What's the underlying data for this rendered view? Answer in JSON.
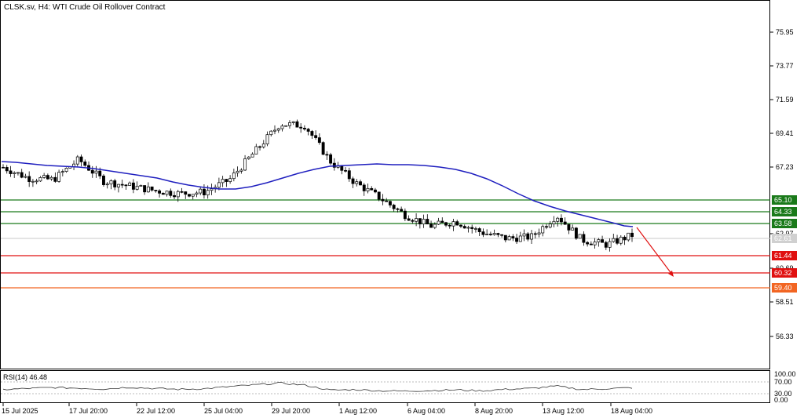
{
  "header": {
    "title": "CLSK.sv, H4:  WTI Crude Oil Rollover Contract"
  },
  "price_axis": {
    "ticks": [
      "75.95",
      "73.77",
      "71.59",
      "69.41",
      "67.23",
      "65.10",
      "64.33",
      "63.58",
      "62.97",
      "62.61",
      "61.44",
      "60.69",
      "60.32",
      "59.40",
      "58.51",
      "56.33"
    ]
  },
  "levels": {
    "resistance": [
      {
        "label": "65.10",
        "value": 65.1,
        "color": "#1a7a1a"
      },
      {
        "label": "64.33",
        "value": 64.33,
        "color": "#1a7a1a"
      },
      {
        "label": "63.58",
        "value": 63.58,
        "color": "#1a7a1a"
      }
    ],
    "support": [
      {
        "label": "61.44",
        "value": 61.44,
        "color": "#e01010"
      },
      {
        "label": "60.32",
        "value": 60.32,
        "color": "#e01010"
      },
      {
        "label": "59.40",
        "value": 59.4,
        "color": "#f26522"
      }
    ],
    "current_price": {
      "label": "62.61",
      "value": 62.61
    }
  },
  "rsi_panel": {
    "title": "RSI(14) 46.48",
    "ticks": [
      "100.00",
      "70.00",
      "30.00",
      "0.00"
    ]
  },
  "time_axis": [
    "15 Jul 2025",
    "17 Jul 20:00",
    "22 Jul 12:00",
    "25 Jul 04:00",
    "29 Jul 20:00",
    "1 Aug 12:00",
    "6 Aug 04:00",
    "8 Aug 20:00",
    "13 Aug 12:00",
    "18 Aug 04:00"
  ],
  "colors": {
    "ma": "#1f1fbf",
    "arrow": "#e01010",
    "candle": "#000000"
  },
  "chart_data": {
    "type": "candlestick",
    "symbol": "CLSK.sv",
    "timeframe": "H4",
    "ma_values": [
      67.75,
      67.7,
      67.62,
      67.5,
      67.35,
      67.18,
      67.0,
      66.8,
      66.65,
      66.6,
      66.75,
      67.1,
      67.45,
      67.6,
      67.62,
      67.55,
      67.45,
      67.3,
      67.0,
      66.6,
      66.1,
      65.5,
      64.9,
      64.4,
      64.0,
      63.65
    ],
    "close_values": [
      67.0,
      66.3,
      66.2,
      67.5,
      66.1,
      65.8,
      65.5,
      65.3,
      65.4,
      66.2,
      68.0,
      69.8,
      69.7,
      67.4,
      66.0,
      65.0,
      63.9,
      63.2,
      63.5,
      62.8,
      62.4,
      62.5,
      63.9,
      62.3,
      62.0,
      62.61
    ],
    "rsi_values": [
      40,
      44,
      47,
      45,
      42,
      48,
      44,
      41,
      43,
      50,
      56,
      62,
      55,
      38,
      40,
      36,
      35,
      37,
      39,
      36,
      41,
      44,
      52,
      40,
      43,
      46.48
    ]
  }
}
